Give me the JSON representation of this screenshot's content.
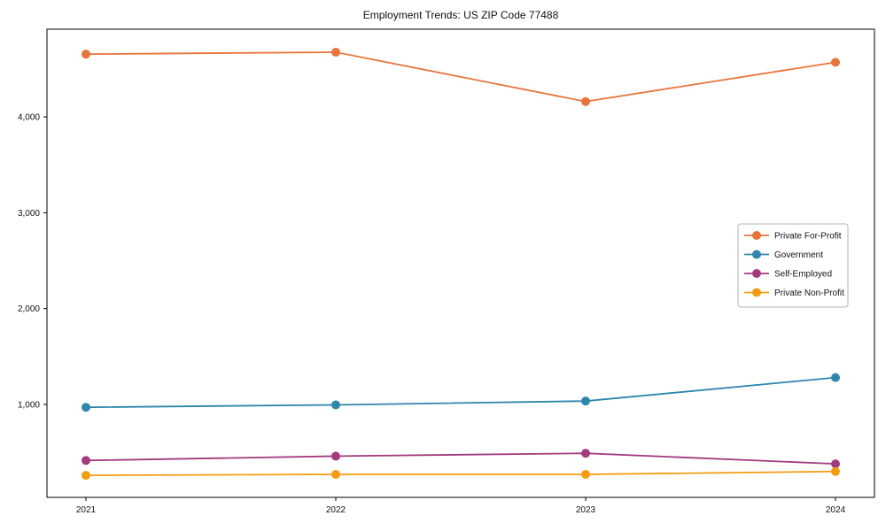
{
  "chart_data": {
    "type": "line",
    "title": "Employment Trends: US ZIP Code 77488",
    "xlabel": "",
    "ylabel": "",
    "x": [
      "2021",
      "2022",
      "2023",
      "2024"
    ],
    "series": [
      {
        "name": "Private For-Profit",
        "color": "#E8743B",
        "values": [
          4655,
          4675,
          4160,
          4570
        ]
      },
      {
        "name": "Government",
        "color": "#2E86AB",
        "values": [
          970,
          995,
          1035,
          1280
        ]
      },
      {
        "name": "Self-Employed",
        "color": "#A23B7E",
        "values": [
          415,
          460,
          490,
          380
        ]
      },
      {
        "name": "Private Non-Profit",
        "color": "#F39C12",
        "values": [
          260,
          270,
          270,
          300
        ]
      }
    ],
    "ylim": [
      30,
      4915
    ],
    "yticks": [
      1000,
      2000,
      3000,
      4000
    ],
    "ytick_labels": [
      "1,000",
      "2,000",
      "3,000",
      "4,000"
    ],
    "grid": false,
    "legend_position": "center right",
    "marker": "circle",
    "axis_color": "#000000",
    "legend_border_color": "#b5b5b5"
  }
}
